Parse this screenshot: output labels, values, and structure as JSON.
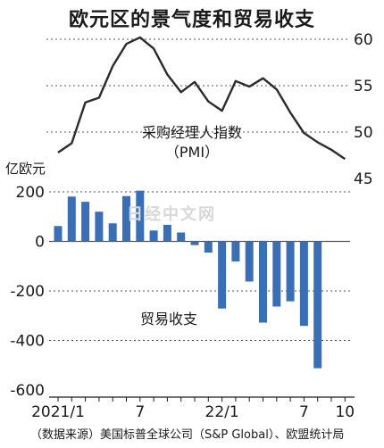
{
  "title": "欧元区的景气度和贸易收支",
  "source": "（数据来源）美国标普全球公司（S&P Global）、欧盟统计局",
  "watermark": "日经中文网",
  "chart_data": [
    {
      "type": "line",
      "label": "采购经理人指数\n（PMI）",
      "ylim": [
        45,
        60
      ],
      "yticks": [
        "60",
        "55",
        "50",
        "45"
      ],
      "x": [
        "2021/1",
        "2021/2",
        "2021/3",
        "2021/4",
        "2021/5",
        "2021/6",
        "2021/7",
        "2021/8",
        "2021/9",
        "2021/10",
        "2021/11",
        "2021/12",
        "2022/1",
        "2022/2",
        "2022/3",
        "2022/4",
        "2022/5",
        "2022/6",
        "2022/7",
        "2022/8",
        "2022/9",
        "2022/10"
      ],
      "values": [
        47.8,
        48.8,
        53.2,
        53.7,
        57.1,
        59.5,
        60.2,
        59.0,
        56.2,
        54.3,
        55.4,
        53.3,
        52.3,
        55.5,
        54.9,
        55.8,
        54.6,
        52.1,
        49.9,
        48.9,
        48.1,
        47.1
      ]
    },
    {
      "type": "bar",
      "label": "贸易收支",
      "unit": "亿欧元",
      "ylim": [
        -600,
        200
      ],
      "yticks": [
        "200",
        "0",
        "-200",
        "-400",
        "-600"
      ],
      "x": [
        "2021/1",
        "2021/2",
        "2021/3",
        "2021/4",
        "2021/5",
        "2021/6",
        "2021/7",
        "2021/8",
        "2021/9",
        "2021/10",
        "2021/11",
        "2021/12",
        "2022/1",
        "2022/2",
        "2022/3",
        "2022/4",
        "2022/5",
        "2022/6",
        "2022/7",
        "2022/8",
        "2022/9"
      ],
      "values": [
        62,
        181,
        160,
        120,
        73,
        183,
        205,
        44,
        67,
        36,
        -15,
        -45,
        -271,
        -81,
        -162,
        -328,
        -263,
        -242,
        -341,
        -512,
        null
      ],
      "xtick_labels": [
        {
          "month": "2021/1",
          "label": "2021/1"
        },
        {
          "month": "2021/7",
          "label": "7"
        },
        {
          "month": "2022/1",
          "label": "22/1"
        },
        {
          "month": "2022/7",
          "label": "7"
        },
        {
          "month": "2022/10",
          "label": "10"
        }
      ]
    }
  ],
  "colors": {
    "line": "#2b2b2b",
    "bar": "#3a6fb5",
    "grid": "#555555"
  }
}
